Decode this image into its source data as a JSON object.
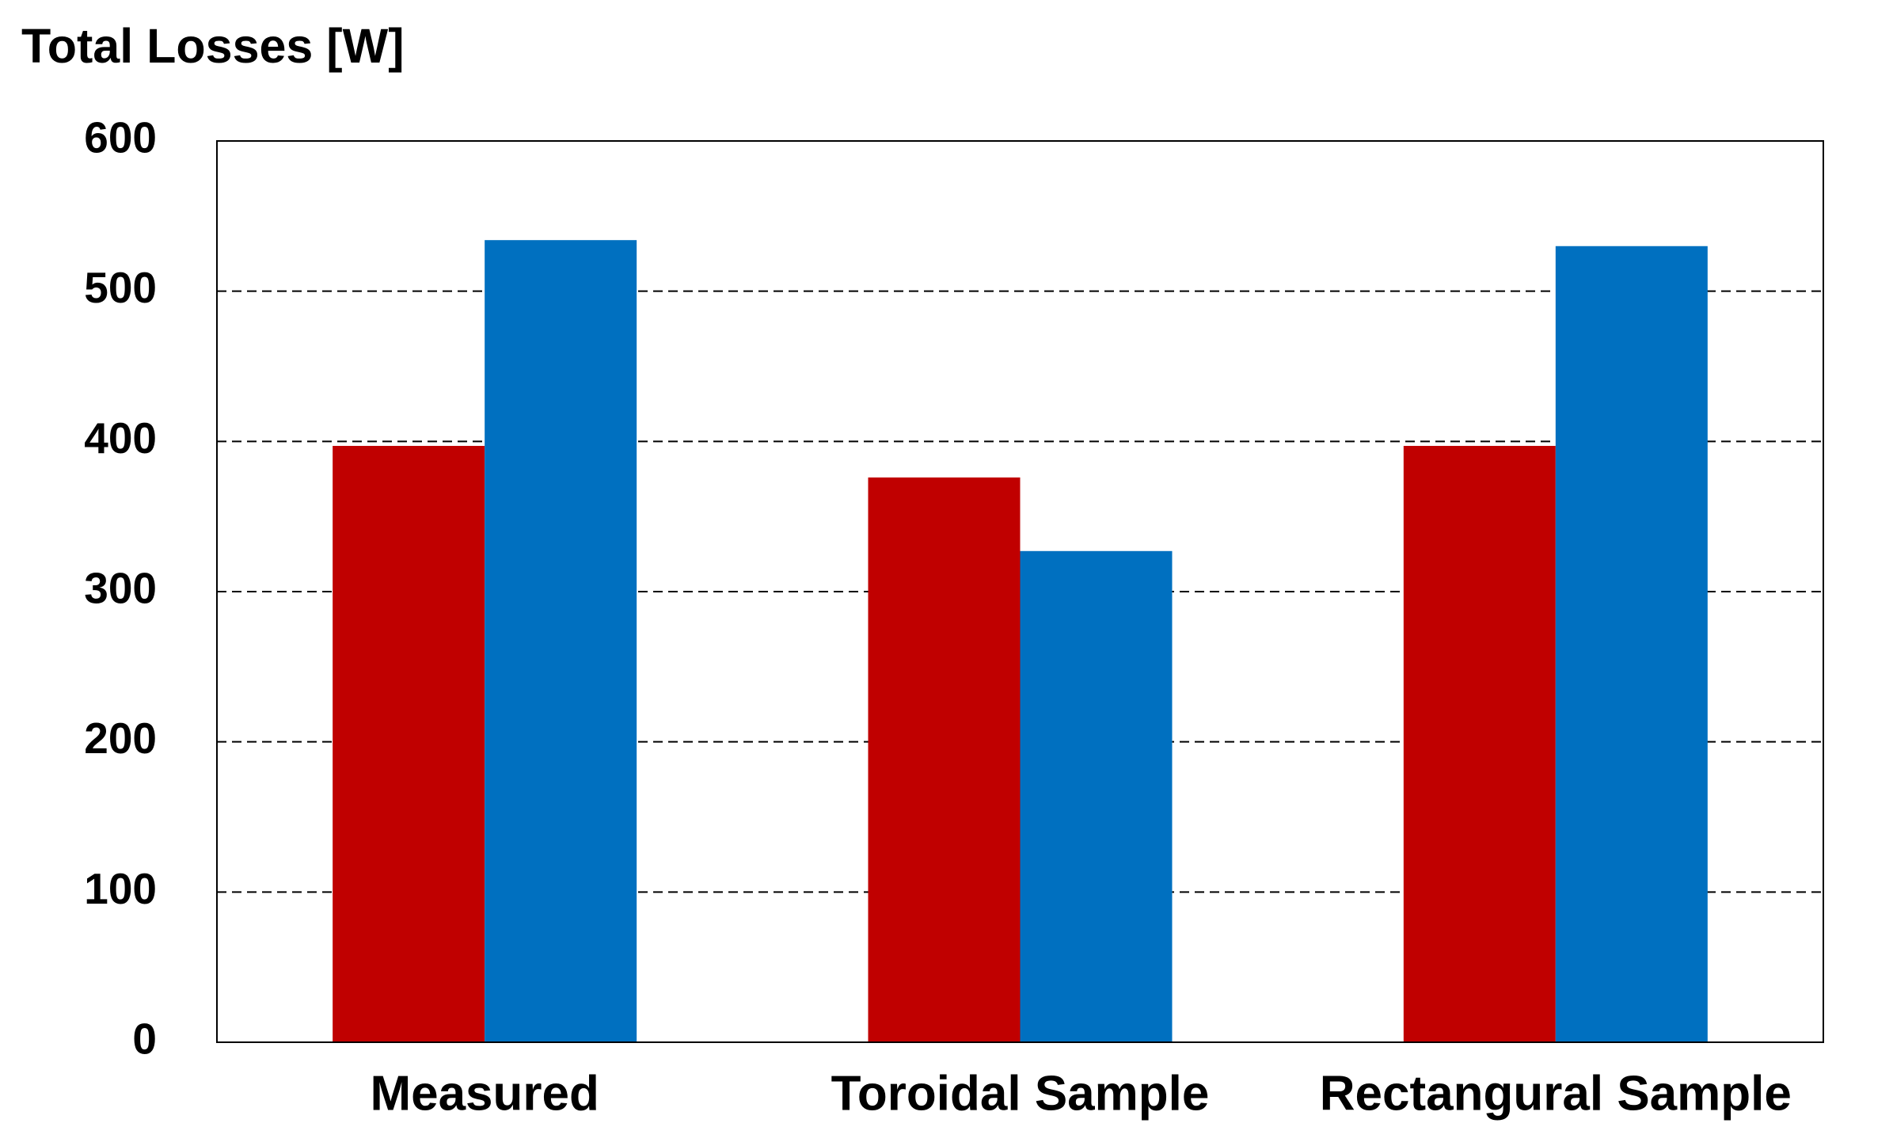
{
  "chart_data": {
    "type": "bar",
    "ylabel": "Total Losses [W]",
    "categories": [
      "Measured",
      "Toroidal Sample",
      "Rectangural Sample"
    ],
    "series": [
      {
        "color": "#c00000",
        "values": [
          397,
          376,
          397
        ]
      },
      {
        "color": "#0070c0",
        "values": [
          534,
          327,
          530
        ]
      }
    ],
    "ylim": [
      0,
      600
    ],
    "yticks": [
      0,
      100,
      200,
      300,
      400,
      500,
      600
    ],
    "grid": true
  }
}
